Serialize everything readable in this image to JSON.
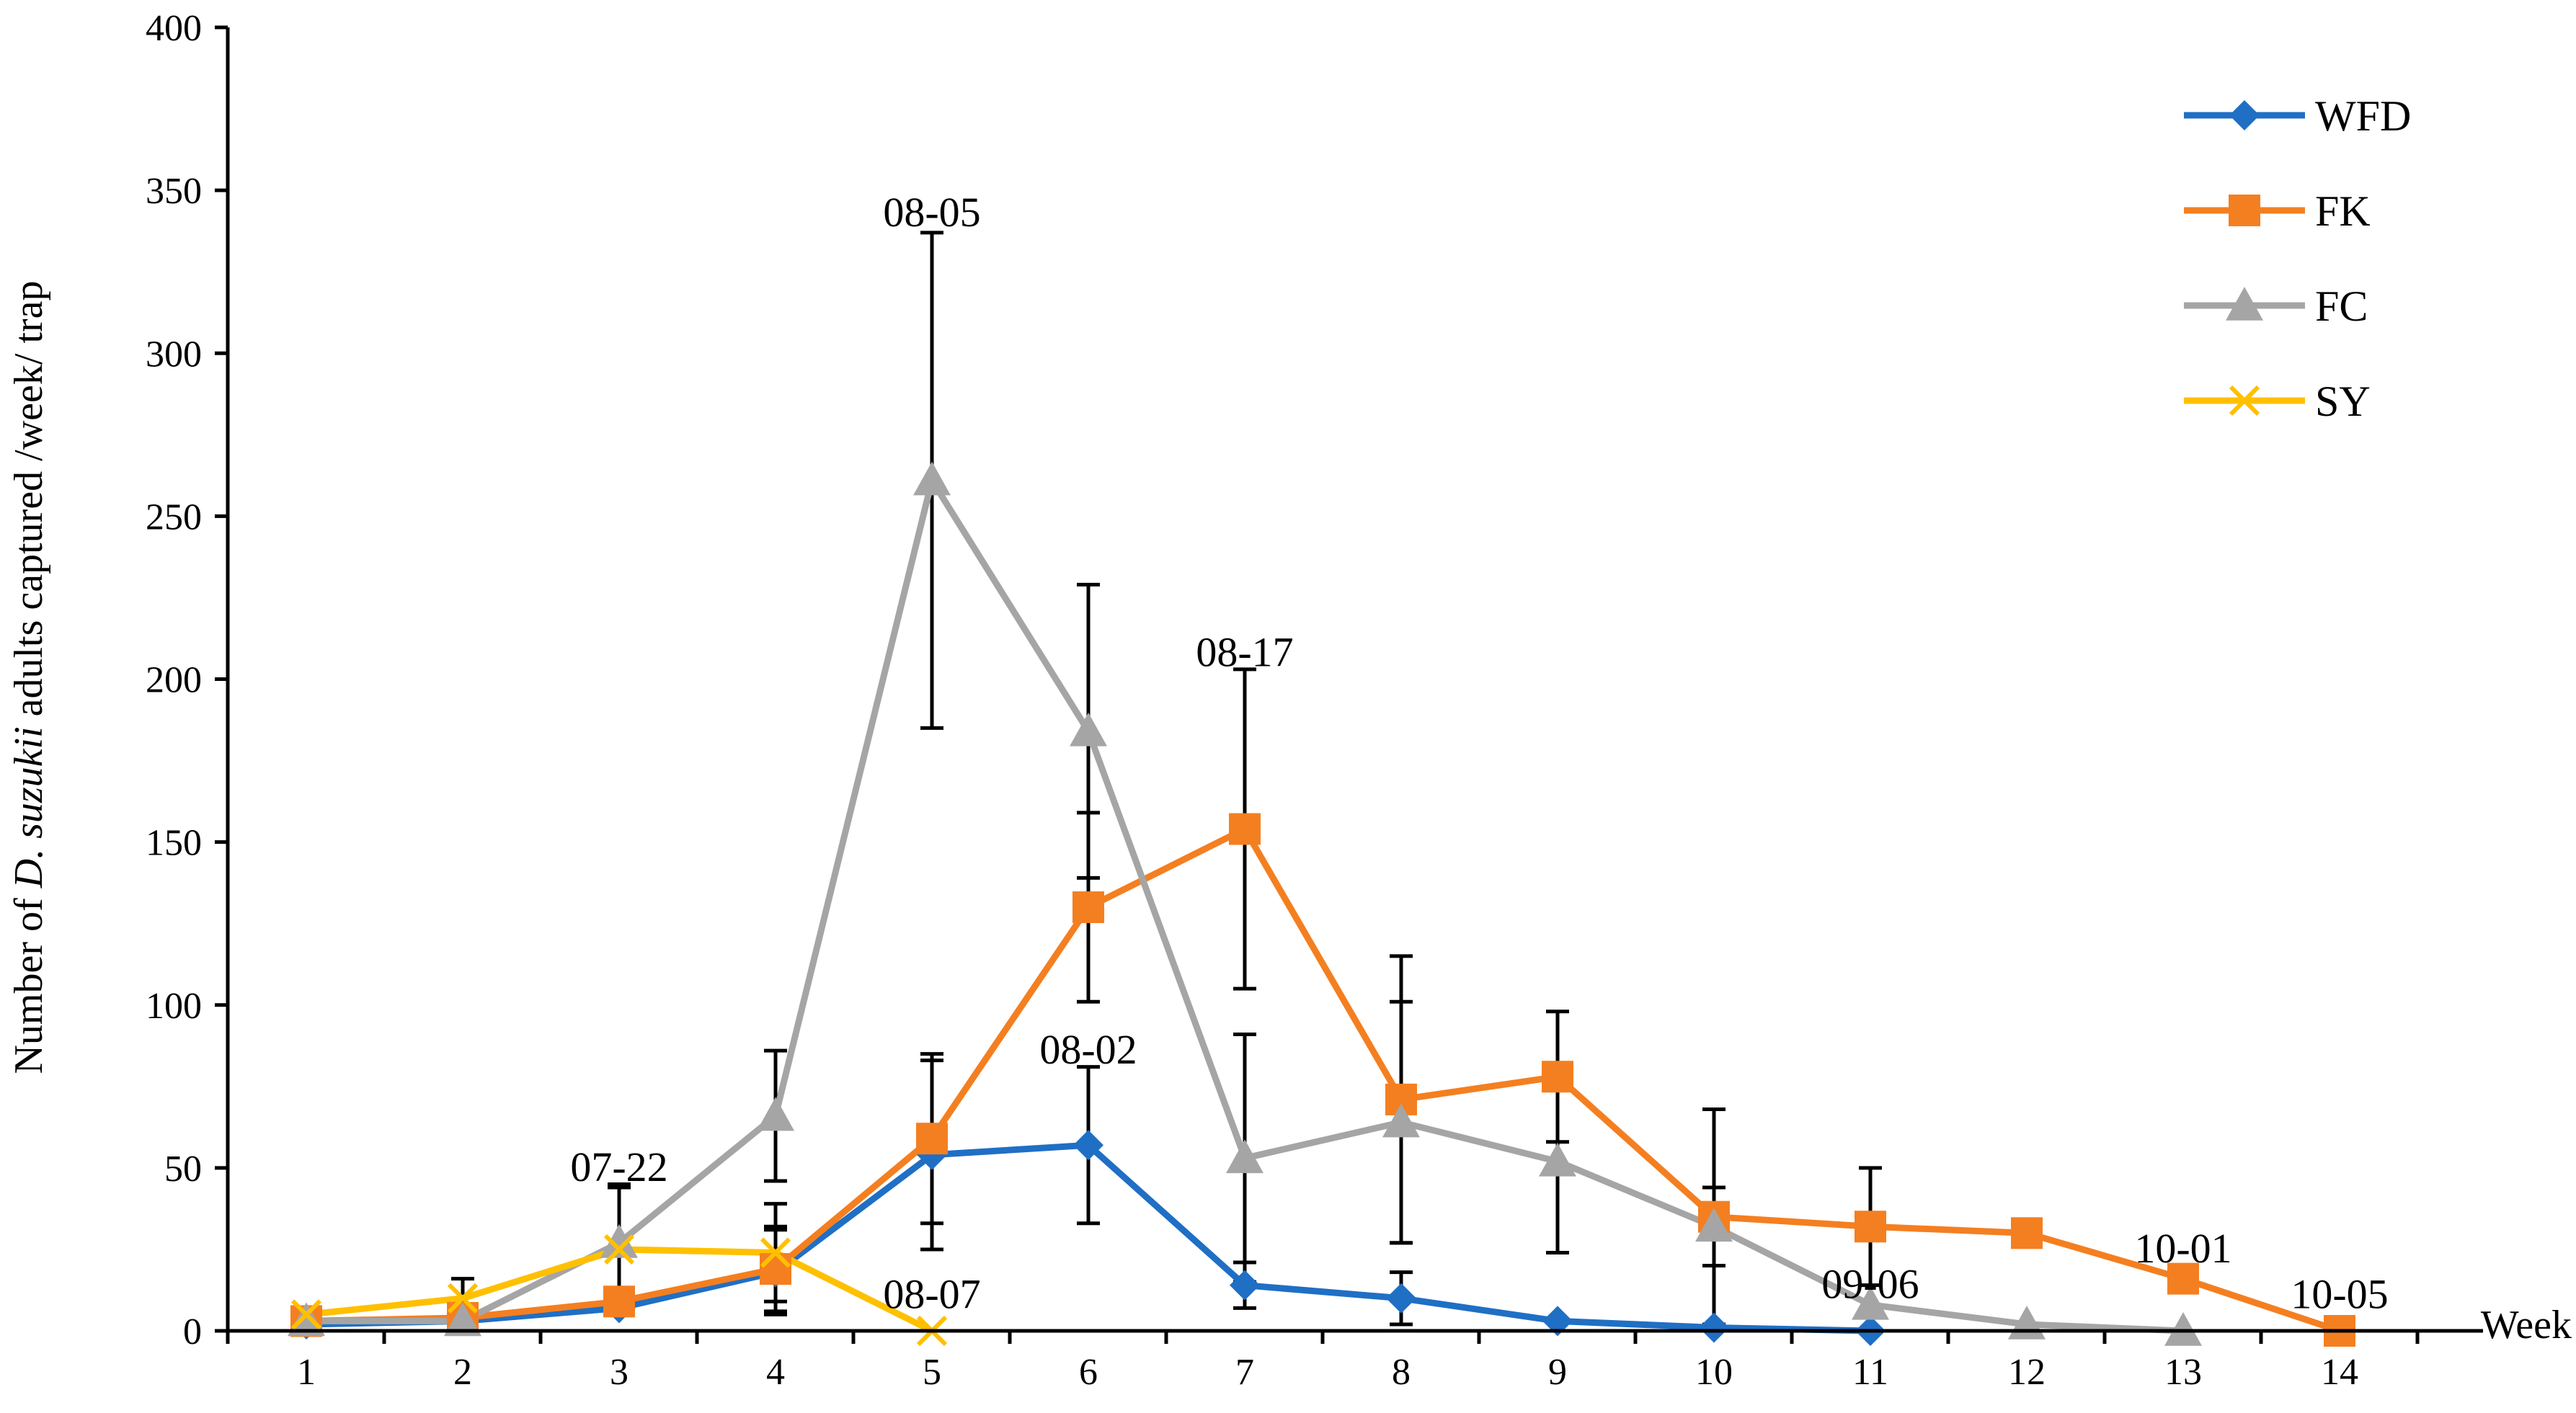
{
  "chart_data": {
    "type": "line",
    "title": "",
    "xlabel": "Week",
    "ylabel_parts": [
      "Number of ",
      "D. suzukii",
      " adults captured /week/ trap"
    ],
    "ylim": [
      0,
      400
    ],
    "yticks": [
      0,
      50,
      100,
      150,
      200,
      250,
      300,
      350,
      400
    ],
    "categories": [
      "1",
      "2",
      "3",
      "4",
      "5",
      "6",
      "7",
      "8",
      "9",
      "10",
      "11",
      "12",
      "13",
      "14"
    ],
    "legend_position": "top-right",
    "series": [
      {
        "name": "WFD",
        "color": "#1F6FC5",
        "marker": "diamond",
        "x": [
          1,
          2,
          3,
          4,
          5,
          6,
          7,
          8,
          9,
          10,
          11
        ],
        "values": [
          2,
          3,
          7,
          18,
          54,
          57,
          14,
          10,
          3,
          1,
          0
        ],
        "errors": [
          0,
          0,
          0,
          13,
          29,
          24,
          7,
          8,
          0,
          0,
          0
        ]
      },
      {
        "name": "FK",
        "color": "#F47F20",
        "marker": "square",
        "x": [
          1,
          2,
          3,
          4,
          5,
          6,
          7,
          8,
          9,
          10,
          11,
          12,
          13,
          14
        ],
        "values": [
          3,
          4,
          9,
          19,
          59,
          130,
          154,
          71,
          78,
          35,
          32,
          30,
          16,
          0
        ],
        "errors": [
          0,
          0,
          0,
          13,
          26,
          29,
          49,
          44,
          20,
          33,
          18,
          0,
          0,
          0
        ]
      },
      {
        "name": "FC",
        "color": "#A5A5A5",
        "marker": "triangle",
        "x": [
          1,
          2,
          3,
          4,
          5,
          6,
          7,
          8,
          9,
          10,
          11,
          12,
          13
        ],
        "values": [
          3,
          3,
          27,
          66,
          261,
          184,
          53,
          64,
          52,
          32,
          8,
          2,
          0
        ],
        "errors": [
          0,
          0,
          17,
          20,
          76,
          45,
          38,
          37,
          28,
          12,
          0,
          0,
          0
        ]
      },
      {
        "name": "SY",
        "color": "#FFC000",
        "marker": "x",
        "x": [
          1,
          2,
          3,
          4,
          5
        ],
        "values": [
          5,
          10,
          25,
          24,
          0
        ],
        "errors": [
          2,
          6,
          20,
          15,
          0
        ]
      }
    ],
    "annotations": [
      {
        "text": "07-22",
        "x": 3,
        "y": 50
      },
      {
        "text": "08-05",
        "x": 5,
        "y": 343
      },
      {
        "text": "08-02",
        "x": 6,
        "y": 86
      },
      {
        "text": "08-07",
        "x": 5,
        "y": 11
      },
      {
        "text": "08-17",
        "x": 7,
        "y": 208
      },
      {
        "text": "09-06",
        "x": 11,
        "y": 14
      },
      {
        "text": "10-01",
        "x": 13,
        "y": 25
      },
      {
        "text": "10-05",
        "x": 14,
        "y": 11
      }
    ]
  }
}
